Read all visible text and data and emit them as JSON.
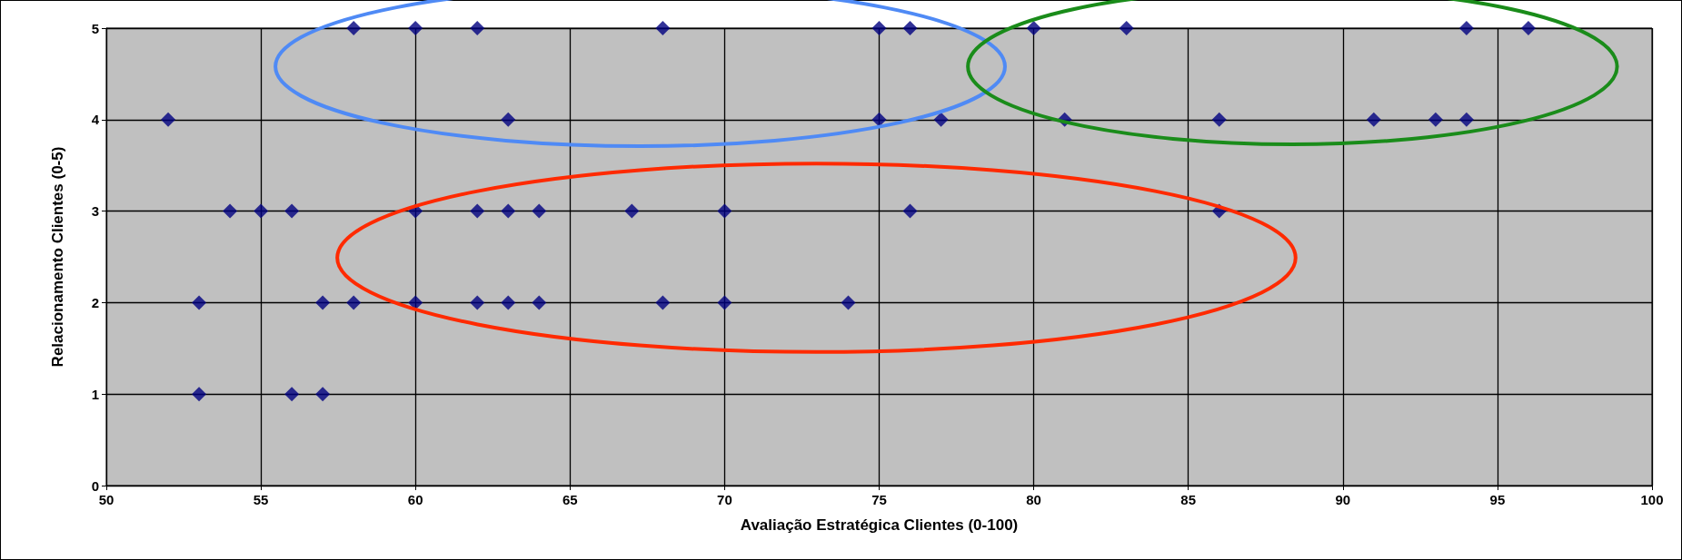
{
  "chart_data": {
    "type": "scatter",
    "xlabel": "Avaliação Estratégica Clientes (0-100)",
    "ylabel": "Relacionamento Clientes (0-5)",
    "x": [
      58,
      60,
      62,
      68,
      75,
      76,
      80,
      83,
      94,
      96,
      52,
      63,
      75,
      77,
      81,
      86,
      91,
      93,
      94,
      54,
      55,
      56,
      60,
      62,
      63,
      64,
      67,
      70,
      76,
      86,
      53,
      57,
      58,
      60,
      62,
      63,
      64,
      68,
      70,
      74,
      53,
      56,
      57
    ],
    "series": [
      {
        "color": "#000080",
        "values": [
          5,
          5,
          5,
          5,
          5,
          5,
          5,
          5,
          5,
          5,
          4,
          4,
          4,
          4,
          4,
          4,
          4,
          4,
          4,
          3,
          3,
          3,
          3,
          3,
          3,
          3,
          3,
          3,
          3,
          3,
          2,
          2,
          2,
          2,
          2,
          2,
          2,
          2,
          2,
          2,
          1,
          1,
          1
        ]
      }
    ],
    "xlim": [
      50,
      100
    ],
    "xticks": [
      50,
      55,
      60,
      65,
      70,
      75,
      80,
      85,
      90,
      95,
      100
    ],
    "ylim": [
      0,
      5
    ],
    "yticks": [
      0,
      1,
      2,
      3,
      4,
      5
    ],
    "grid": true,
    "marker": "diamond"
  }
}
